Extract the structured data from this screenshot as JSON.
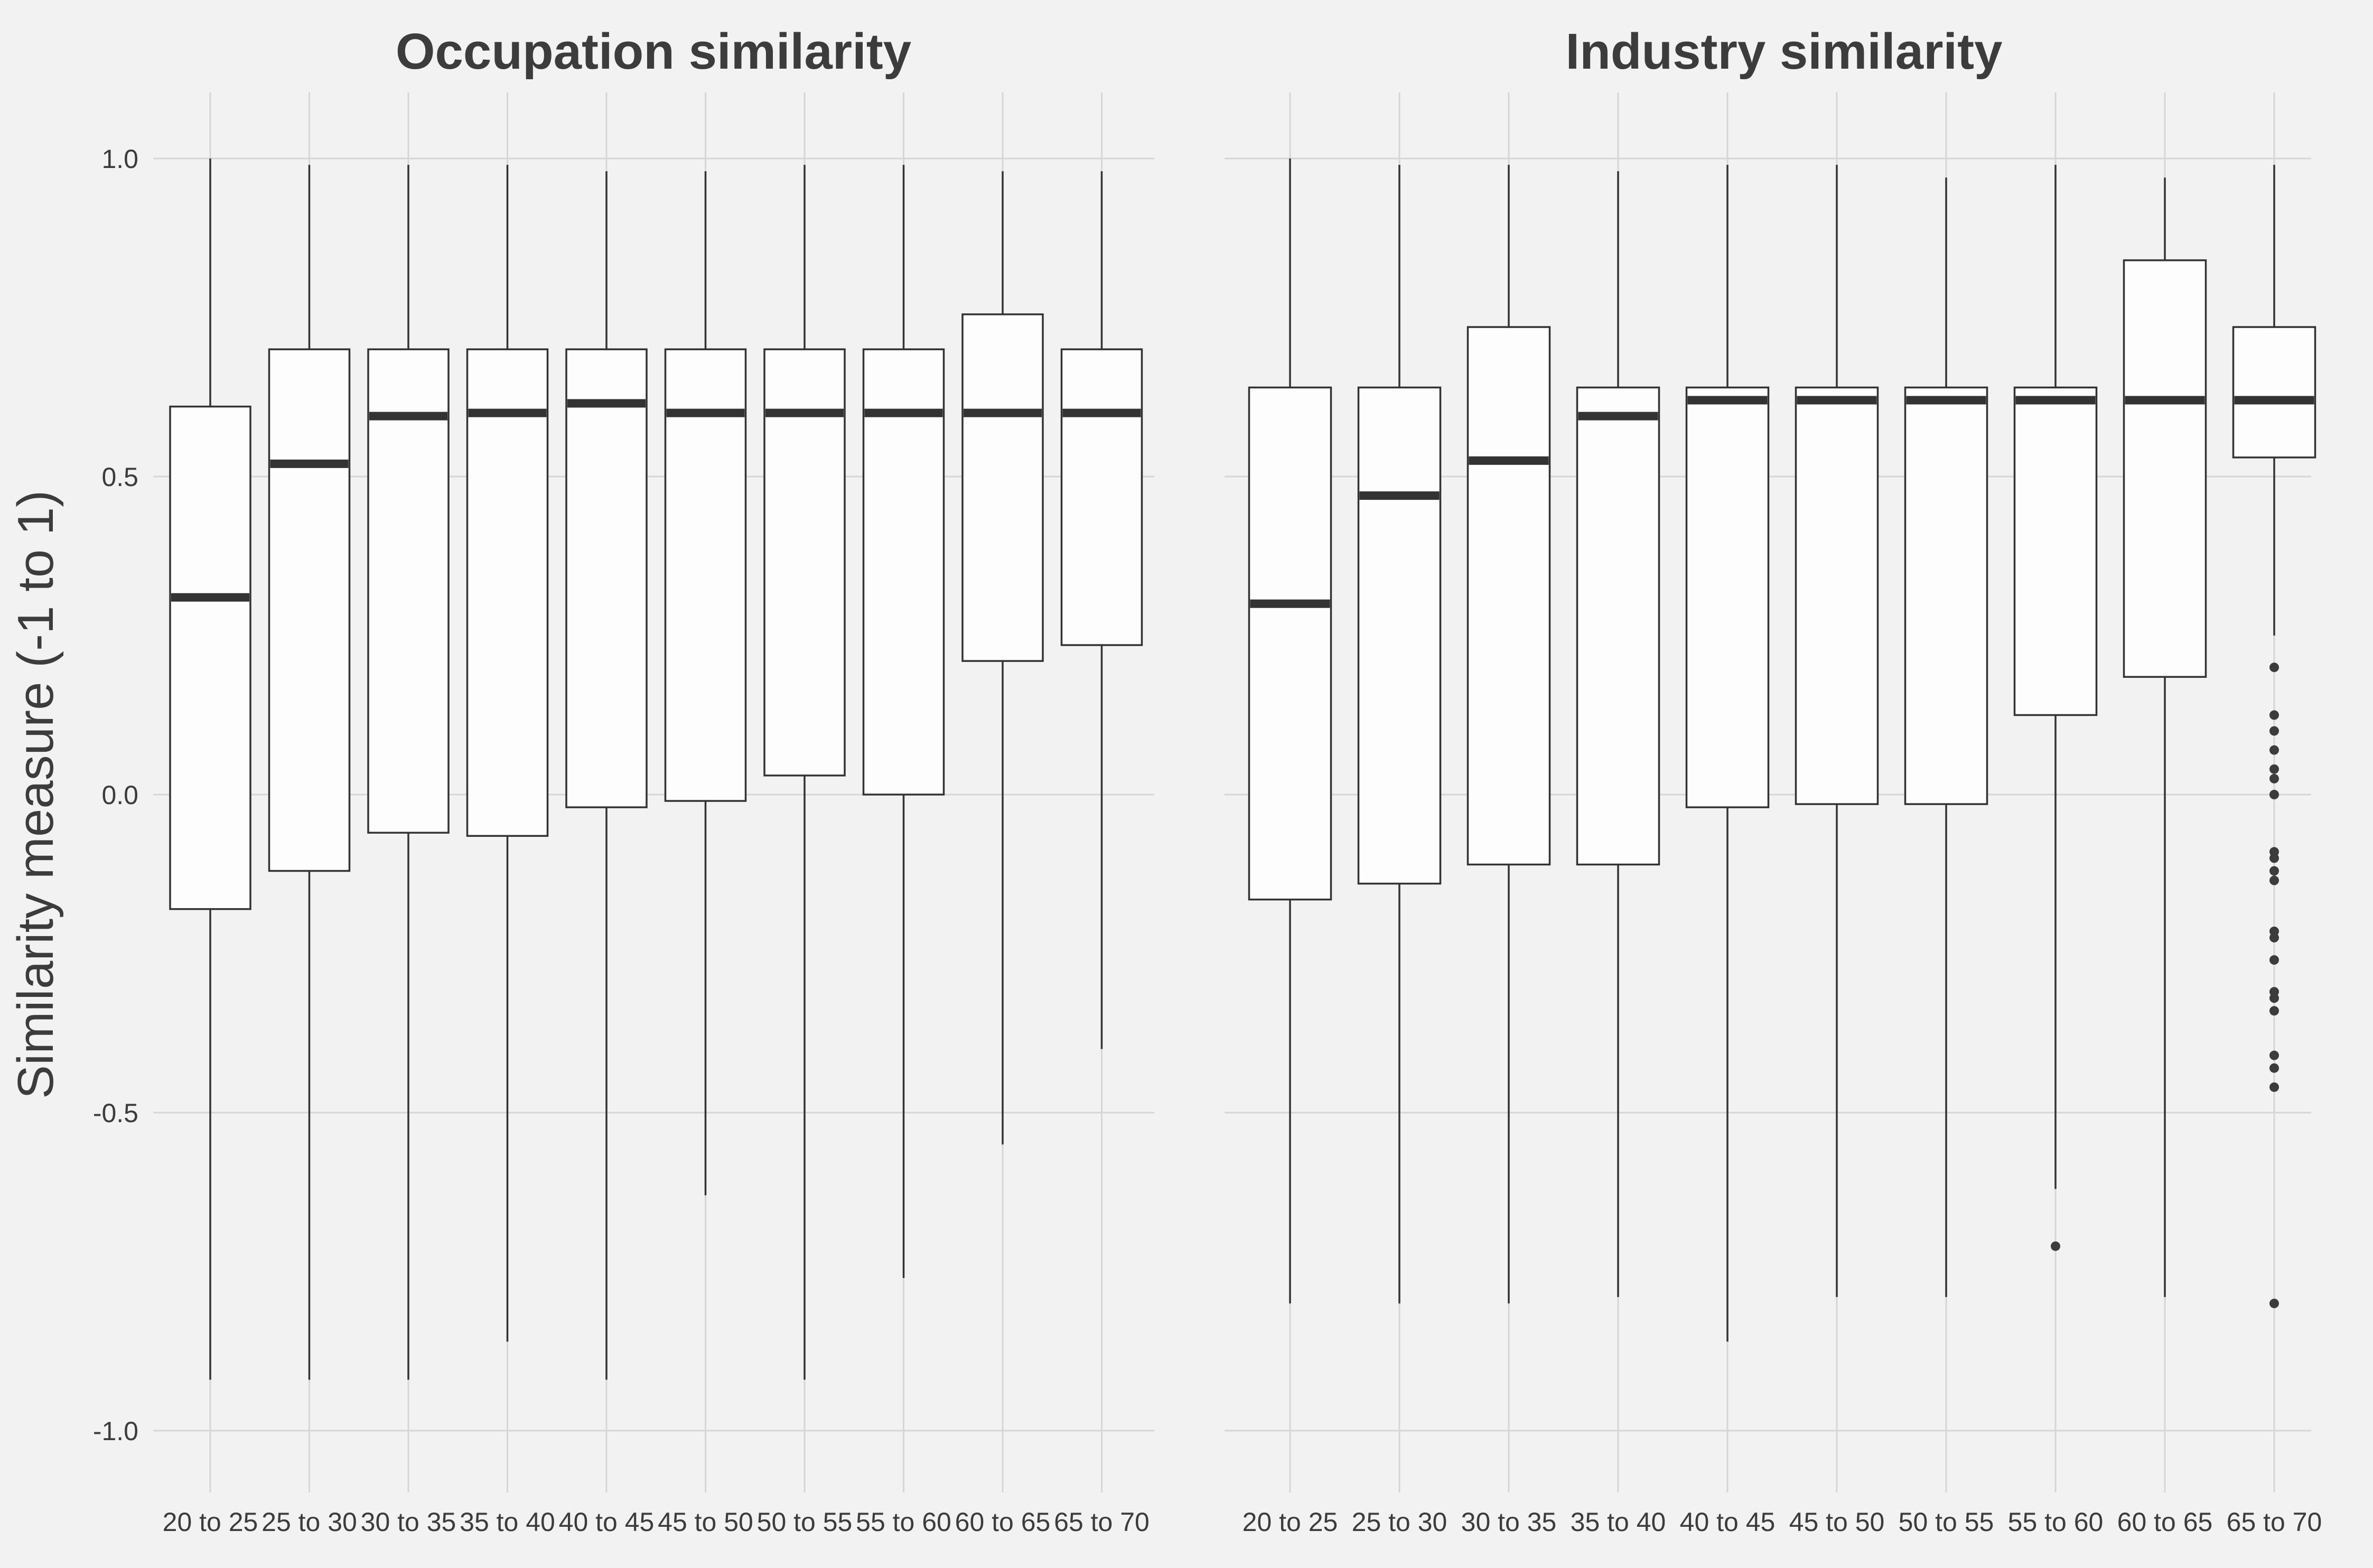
{
  "y_axis_label": "Similarity measure (-1 to 1)",
  "chart_data": [
    {
      "type": "box",
      "title": "Occupation similarity",
      "ylabel": "Similarity measure (-1 to 1)",
      "ylim": [
        -1.1,
        1.1
      ],
      "yticks": [
        -1.0,
        -0.5,
        0.0,
        0.5,
        1.0
      ],
      "ytick_labels": [
        "-1.0",
        "-0.5",
        "0.0",
        "0.5",
        "1.0"
      ],
      "grid": true,
      "categories": [
        "20 to 25",
        "25 to 30",
        "30 to 35",
        "35 to 40",
        "40 to 45",
        "45 to 50",
        "50 to 55",
        "55 to 60",
        "60 to 65",
        "65 to 70"
      ],
      "boxes": [
        {
          "min": -0.92,
          "q1": -0.18,
          "median": 0.31,
          "q3": 0.61,
          "max": 1.0,
          "outliers": []
        },
        {
          "min": -0.92,
          "q1": -0.12,
          "median": 0.52,
          "q3": 0.7,
          "max": 0.99,
          "outliers": []
        },
        {
          "min": -0.92,
          "q1": -0.06,
          "median": 0.595,
          "q3": 0.7,
          "max": 0.99,
          "outliers": []
        },
        {
          "min": -0.86,
          "q1": -0.065,
          "median": 0.6,
          "q3": 0.7,
          "max": 0.99,
          "outliers": []
        },
        {
          "min": -0.92,
          "q1": -0.02,
          "median": 0.615,
          "q3": 0.7,
          "max": 0.98,
          "outliers": []
        },
        {
          "min": -0.63,
          "q1": -0.01,
          "median": 0.6,
          "q3": 0.7,
          "max": 0.98,
          "outliers": []
        },
        {
          "min": -0.92,
          "q1": 0.03,
          "median": 0.6,
          "q3": 0.7,
          "max": 0.99,
          "outliers": []
        },
        {
          "min": -0.76,
          "q1": 0.0,
          "median": 0.6,
          "q3": 0.7,
          "max": 0.99,
          "outliers": []
        },
        {
          "min": -0.55,
          "q1": 0.21,
          "median": 0.6,
          "q3": 0.755,
          "max": 0.98,
          "outliers": []
        },
        {
          "min": -0.4,
          "q1": 0.235,
          "median": 0.6,
          "q3": 0.7,
          "max": 0.98,
          "outliers": []
        }
      ]
    },
    {
      "type": "box",
      "title": "Industry similarity",
      "ylim": [
        -1.1,
        1.1
      ],
      "yticks": [
        -1.0,
        -0.5,
        0.0,
        0.5,
        1.0
      ],
      "grid": true,
      "categories": [
        "20 to 25",
        "25 to 30",
        "30 to 35",
        "35 to 40",
        "40 to 45",
        "45 to 50",
        "50 to 55",
        "55 to 60",
        "60 to 65",
        "65 to 70"
      ],
      "boxes": [
        {
          "min": -0.8,
          "q1": -0.165,
          "median": 0.3,
          "q3": 0.64,
          "max": 1.0,
          "outliers": []
        },
        {
          "min": -0.8,
          "q1": -0.14,
          "median": 0.47,
          "q3": 0.64,
          "max": 0.99,
          "outliers": []
        },
        {
          "min": -0.8,
          "q1": -0.11,
          "median": 0.525,
          "q3": 0.735,
          "max": 0.99,
          "outliers": []
        },
        {
          "min": -0.79,
          "q1": -0.11,
          "median": 0.595,
          "q3": 0.64,
          "max": 0.98,
          "outliers": []
        },
        {
          "min": -0.86,
          "q1": -0.02,
          "median": 0.62,
          "q3": 0.64,
          "max": 0.99,
          "outliers": []
        },
        {
          "min": -0.79,
          "q1": -0.015,
          "median": 0.62,
          "q3": 0.64,
          "max": 0.99,
          "outliers": []
        },
        {
          "min": -0.79,
          "q1": -0.015,
          "median": 0.62,
          "q3": 0.64,
          "max": 0.97,
          "outliers": []
        },
        {
          "min": -0.62,
          "q1": 0.125,
          "median": 0.62,
          "q3": 0.64,
          "max": 0.99,
          "outliers": [
            -0.71
          ]
        },
        {
          "min": -0.79,
          "q1": 0.185,
          "median": 0.62,
          "q3": 0.84,
          "max": 0.97,
          "outliers": []
        },
        {
          "min": 0.25,
          "q1": 0.53,
          "median": 0.62,
          "q3": 0.735,
          "max": 0.99,
          "outliers": [
            0.2,
            0.125,
            0.1,
            0.07,
            0.04,
            0.025,
            0.0,
            -0.09,
            -0.1,
            -0.12,
            -0.135,
            -0.215,
            -0.225,
            -0.26,
            -0.31,
            -0.32,
            -0.34,
            -0.41,
            -0.43,
            -0.46,
            -0.8
          ]
        }
      ]
    }
  ]
}
